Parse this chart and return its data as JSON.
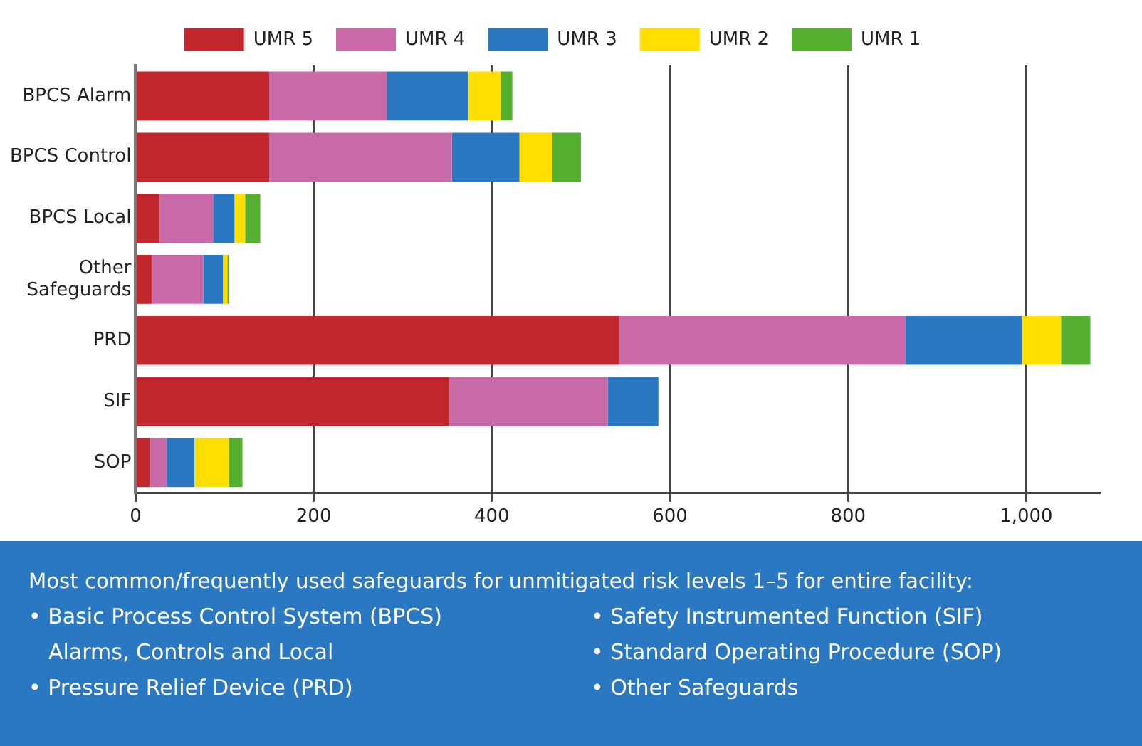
{
  "chart_data": {
    "type": "bar",
    "orientation": "horizontal",
    "stacked": true,
    "categories": [
      "BPCS Alarm",
      "BPCS Control",
      "BPCS Local",
      "Other Safeguards",
      "PRD",
      "SIF",
      "SOP"
    ],
    "series": [
      {
        "name": "UMR 5",
        "color": "#c1272d",
        "values": [
          150,
          150,
          27,
          18,
          543,
          352,
          16
        ]
      },
      {
        "name": "UMR 4",
        "color": "#c96aa8",
        "values": [
          132,
          205,
          60,
          58,
          321,
          178,
          19
        ]
      },
      {
        "name": "UMR 3",
        "color": "#2b78c2",
        "values": [
          91,
          76,
          24,
          22,
          131,
          57,
          31
        ]
      },
      {
        "name": "UMR 2",
        "color": "#ffde00",
        "values": [
          37,
          37,
          12,
          5,
          44,
          0,
          39
        ]
      },
      {
        "name": "UMR 1",
        "color": "#55b030",
        "values": [
          13,
          32,
          17,
          2,
          33,
          0,
          15
        ]
      }
    ],
    "xlim": [
      0,
      1082
    ],
    "xticks": [
      0,
      200,
      400,
      600,
      800,
      {
        "value": 1000,
        "label": "1,000"
      }
    ],
    "grid": "x",
    "legend": "top",
    "annotations": [
      "Most common/frequently used safeguards for unmitigated risk levels 1–5 for entire facility:",
      "• Basic Process Control System (BPCS) Alarms, Controls and Local",
      "• Pressure Relief Device (PRD)",
      "• Safety Instrumented Function (SIF)",
      "• Standard Operating Procedure (SOP)",
      "• Other Safeguards"
    ]
  }
}
